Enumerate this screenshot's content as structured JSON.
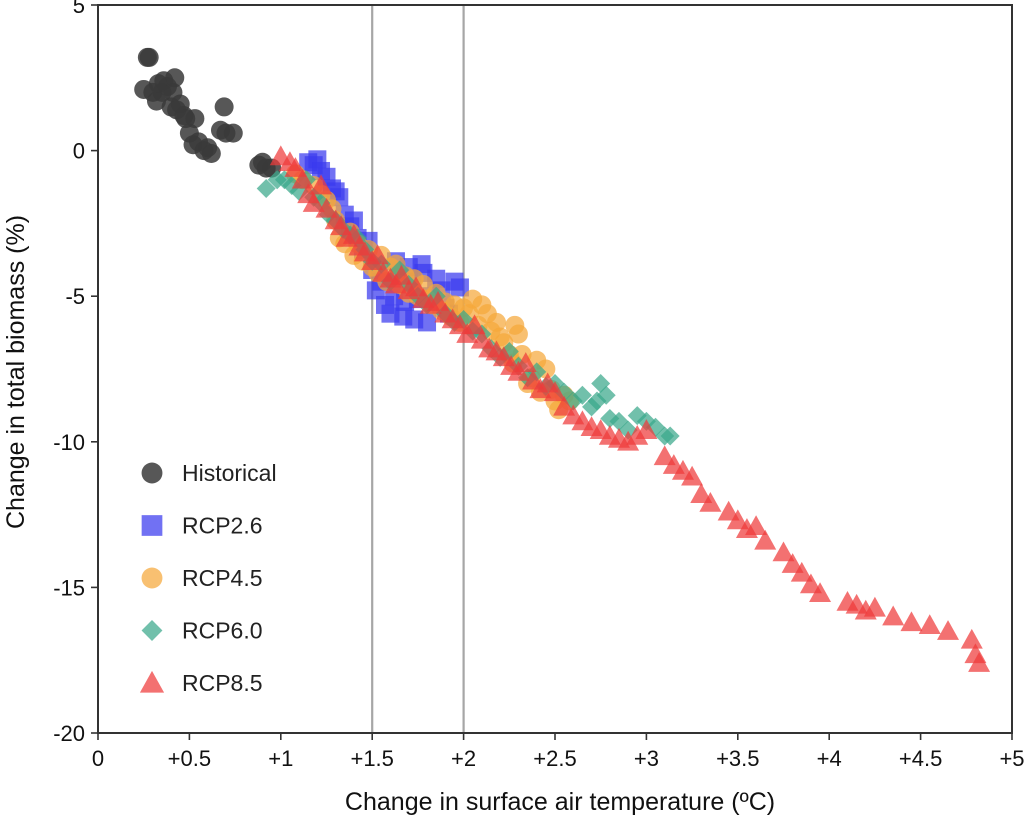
{
  "chart_data": {
    "type": "scatter",
    "xlabel": "Change in surface air temperature (ºC)",
    "ylabel": "Change in total biomass (%)",
    "xlim": [
      0,
      5
    ],
    "ylim": [
      -20,
      5
    ],
    "x_ticks": [
      {
        "value": 0,
        "label": "0"
      },
      {
        "value": 0.5,
        "label": "+0.5"
      },
      {
        "value": 1,
        "label": "+1"
      },
      {
        "value": 1.5,
        "label": "+1.5"
      },
      {
        "value": 2,
        "label": "+2"
      },
      {
        "value": 2.5,
        "label": "+2.5"
      },
      {
        "value": 3,
        "label": "+3"
      },
      {
        "value": 3.5,
        "label": "+3.5"
      },
      {
        "value": 4,
        "label": "+4"
      },
      {
        "value": 4.5,
        "label": "+4.5"
      },
      {
        "value": 5,
        "label": "+5"
      }
    ],
    "y_ticks": [
      {
        "value": 5,
        "label": "5"
      },
      {
        "value": 0,
        "label": "0"
      },
      {
        "value": -5,
        "label": "-5"
      },
      {
        "value": -10,
        "label": "-10"
      },
      {
        "value": -15,
        "label": "-15"
      },
      {
        "value": -20,
        "label": "-20"
      }
    ],
    "reference_lines_x": [
      1.5,
      2.0
    ],
    "grid": false,
    "legend_position": "bottom-left",
    "series": [
      {
        "name": "Historical",
        "marker": "circle",
        "color": "#3a3a3a",
        "x": [
          0.25,
          0.27,
          0.28,
          0.3,
          0.32,
          0.33,
          0.35,
          0.36,
          0.38,
          0.4,
          0.41,
          0.42,
          0.43,
          0.45,
          0.47,
          0.48,
          0.5,
          0.52,
          0.53,
          0.55,
          0.58,
          0.6,
          0.62,
          0.67,
          0.69,
          0.7,
          0.74,
          0.88,
          0.9,
          0.92,
          0.95
        ],
        "y": [
          2.1,
          3.2,
          3.2,
          2.0,
          1.7,
          2.3,
          2.0,
          2.4,
          2.2,
          1.5,
          2.0,
          2.5,
          1.4,
          1.6,
          1.2,
          1.1,
          0.6,
          0.2,
          1.1,
          0.3,
          0.0,
          0.1,
          -0.1,
          0.7,
          1.5,
          0.6,
          0.6,
          -0.5,
          -0.4,
          -0.6,
          -0.6
        ]
      },
      {
        "name": "RCP2.6",
        "marker": "square",
        "color": "#3a3aef",
        "x": [
          1.15,
          1.18,
          1.2,
          1.22,
          1.25,
          1.28,
          1.3,
          1.32,
          1.35,
          1.38,
          1.4,
          1.42,
          1.45,
          1.48,
          1.5,
          1.52,
          1.55,
          1.57,
          1.6,
          1.62,
          1.63,
          1.65,
          1.67,
          1.68,
          1.7,
          1.72,
          1.73,
          1.75,
          1.77,
          1.78,
          1.8,
          1.82,
          1.85,
          1.88,
          1.9,
          1.92,
          1.95,
          1.98
        ],
        "y": [
          -0.4,
          -0.5,
          -0.3,
          -0.7,
          -0.9,
          -1.3,
          -1.4,
          -1.6,
          -2.2,
          -2.6,
          -2.4,
          -3.0,
          -3.4,
          -3.1,
          -4.1,
          -4.8,
          -4.5,
          -5.3,
          -5.6,
          -5.0,
          -3.8,
          -4.3,
          -5.7,
          -5.2,
          -4.0,
          -4.5,
          -5.8,
          -5.1,
          -3.9,
          -4.2,
          -5.9,
          -5.0,
          -4.4,
          -4.8,
          -5.4,
          -5.6,
          -4.5,
          -4.7
        ]
      },
      {
        "name": "RCP4.5",
        "marker": "circle",
        "color": "#f5a83a",
        "x": [
          1.08,
          1.12,
          1.18,
          1.22,
          1.25,
          1.28,
          1.3,
          1.32,
          1.35,
          1.38,
          1.4,
          1.42,
          1.45,
          1.48,
          1.5,
          1.53,
          1.55,
          1.58,
          1.6,
          1.63,
          1.65,
          1.68,
          1.7,
          1.73,
          1.75,
          1.78,
          1.8,
          1.83,
          1.85,
          1.88,
          1.9,
          1.93,
          1.95,
          1.98,
          2.0,
          2.03,
          2.05,
          2.08,
          2.1,
          2.13,
          2.15,
          2.18,
          2.2,
          2.22,
          2.25,
          2.27,
          2.28,
          2.3,
          2.32,
          2.35,
          2.37,
          2.4,
          2.42,
          2.45,
          2.48,
          2.5,
          2.52,
          2.55,
          2.58
        ],
        "y": [
          -0.8,
          -1.0,
          -1.2,
          -1.5,
          -1.7,
          -2.0,
          -2.4,
          -3.0,
          -3.2,
          -2.8,
          -3.6,
          -3.2,
          -3.8,
          -3.4,
          -4.0,
          -4.2,
          -3.6,
          -4.5,
          -4.0,
          -3.9,
          -4.6,
          -4.3,
          -4.9,
          -4.4,
          -5.0,
          -4.6,
          -5.1,
          -5.3,
          -4.9,
          -5.5,
          -5.2,
          -5.7,
          -5.3,
          -5.9,
          -5.4,
          -5.6,
          -5.1,
          -6.0,
          -5.3,
          -5.6,
          -6.2,
          -5.9,
          -6.4,
          -6.6,
          -7.0,
          -7.3,
          -6.0,
          -6.3,
          -7.0,
          -8.0,
          -7.8,
          -7.2,
          -8.3,
          -7.5,
          -8.2,
          -8.6,
          -8.9,
          -8.4,
          -8.6
        ]
      },
      {
        "name": "RCP6.0",
        "marker": "diamond",
        "color": "#3aa88a",
        "x": [
          0.92,
          0.98,
          1.02,
          1.06,
          1.1,
          1.14,
          1.18,
          1.22,
          1.26,
          1.3,
          1.34,
          1.38,
          1.42,
          1.46,
          1.5,
          1.55,
          1.6,
          1.65,
          1.7,
          1.75,
          1.8,
          1.85,
          1.9,
          1.95,
          2.0,
          2.05,
          2.1,
          2.15,
          2.2,
          2.25,
          2.3,
          2.35,
          2.4,
          2.45,
          2.5,
          2.55,
          2.6,
          2.65,
          2.7,
          2.73,
          2.75,
          2.78,
          2.8,
          2.85,
          2.9,
          2.95,
          3.0,
          3.05,
          3.1,
          3.13
        ],
        "y": [
          -1.3,
          -1.0,
          -1.0,
          -1.2,
          -1.4,
          -1.0,
          -1.6,
          -1.8,
          -2.2,
          -2.4,
          -2.7,
          -2.9,
          -3.0,
          -3.4,
          -3.8,
          -3.9,
          -4.5,
          -4.1,
          -4.6,
          -5.0,
          -5.3,
          -5.0,
          -5.6,
          -5.9,
          -5.8,
          -6.2,
          -6.3,
          -6.8,
          -7.1,
          -6.9,
          -7.4,
          -7.8,
          -7.6,
          -8.1,
          -8.0,
          -8.3,
          -8.6,
          -8.4,
          -8.8,
          -8.6,
          -8.0,
          -8.4,
          -9.2,
          -9.3,
          -9.6,
          -9.1,
          -9.3,
          -9.5,
          -9.8,
          -9.8
        ]
      },
      {
        "name": "RCP8.5",
        "marker": "triangle",
        "color": "#ef3a3a",
        "x": [
          1.0,
          1.05,
          1.08,
          1.12,
          1.15,
          1.18,
          1.22,
          1.25,
          1.3,
          1.33,
          1.36,
          1.4,
          1.43,
          1.46,
          1.5,
          1.53,
          1.56,
          1.6,
          1.63,
          1.66,
          1.7,
          1.74,
          1.78,
          1.82,
          1.86,
          1.9,
          1.94,
          1.98,
          2.02,
          2.06,
          2.1,
          2.14,
          2.18,
          2.22,
          2.26,
          2.3,
          2.34,
          2.38,
          2.42,
          2.46,
          2.5,
          2.55,
          2.6,
          2.65,
          2.7,
          2.75,
          2.8,
          2.85,
          2.9,
          2.95,
          3.0,
          3.1,
          3.15,
          3.2,
          3.25,
          3.3,
          3.35,
          3.45,
          3.5,
          3.55,
          3.6,
          3.65,
          3.75,
          3.8,
          3.85,
          3.9,
          3.95,
          4.1,
          4.15,
          4.2,
          4.25,
          4.35,
          4.45,
          4.55,
          4.65,
          4.78,
          4.8,
          4.82
        ],
        "y": [
          -0.2,
          -0.4,
          -0.6,
          -1.0,
          -1.5,
          -1.8,
          -1.2,
          -2.0,
          -2.4,
          -2.6,
          -3.0,
          -2.9,
          -3.3,
          -3.5,
          -3.8,
          -3.6,
          -4.2,
          -4.4,
          -4.6,
          -4.3,
          -4.8,
          -4.7,
          -5.1,
          -5.3,
          -5.2,
          -5.6,
          -5.8,
          -6.0,
          -6.3,
          -6.0,
          -6.5,
          -6.8,
          -6.9,
          -7.1,
          -7.4,
          -7.6,
          -7.3,
          -7.9,
          -8.2,
          -8.0,
          -8.3,
          -8.8,
          -9.1,
          -9.3,
          -9.5,
          -9.6,
          -9.8,
          -9.9,
          -10.0,
          -9.8,
          -9.6,
          -10.5,
          -10.8,
          -11.0,
          -11.2,
          -11.8,
          -12.1,
          -12.4,
          -12.7,
          -13.0,
          -12.9,
          -13.4,
          -13.8,
          -14.2,
          -14.5,
          -14.9,
          -15.2,
          -15.5,
          -15.6,
          -15.8,
          -15.7,
          -16.0,
          -16.2,
          -16.3,
          -16.5,
          -16.8,
          -17.3,
          -17.6
        ]
      }
    ]
  }
}
